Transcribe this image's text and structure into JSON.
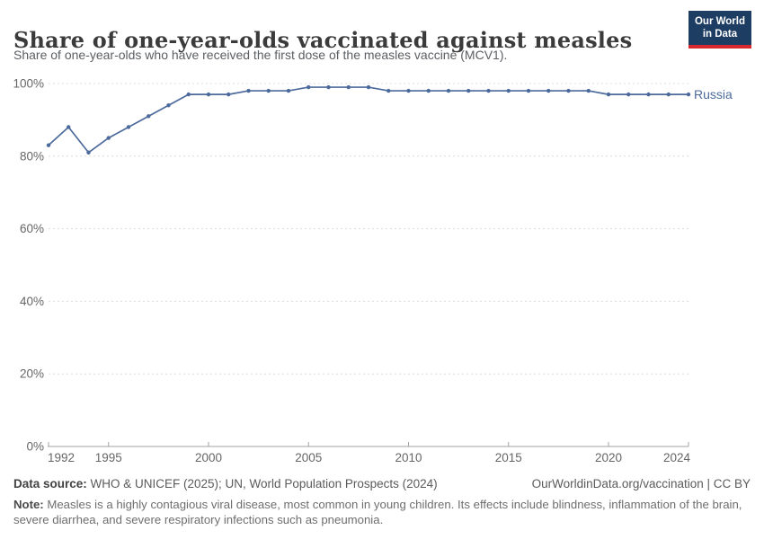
{
  "header": {
    "title": "Share of one-year-olds vaccinated against measles",
    "subtitle": "Share of one-year-olds who have received the first dose of the measles vaccine (MCV1).",
    "logo_line1": "Our World",
    "logo_line2": "in Data"
  },
  "chart_data": {
    "type": "line",
    "title": "Share of one-year-olds vaccinated against measles",
    "entity": "Russia",
    "unit": "%",
    "x": [
      1992,
      1993,
      1994,
      1995,
      1996,
      1997,
      1998,
      1999,
      2000,
      2001,
      2002,
      2003,
      2004,
      2005,
      2006,
      2007,
      2008,
      2009,
      2010,
      2011,
      2012,
      2013,
      2014,
      2015,
      2016,
      2017,
      2018,
      2019,
      2020,
      2021,
      2022,
      2023,
      2024
    ],
    "values": [
      83,
      88,
      81,
      85,
      88,
      91,
      94,
      97,
      97,
      97,
      98,
      98,
      98,
      99,
      99,
      99,
      99,
      98,
      98,
      98,
      98,
      98,
      98,
      98,
      98,
      98,
      98,
      98,
      97,
      97,
      97,
      97,
      97
    ],
    "ylim": [
      0,
      100
    ],
    "yticks": [
      0,
      20,
      40,
      60,
      80,
      100
    ],
    "ytick_labels": [
      "0%",
      "20%",
      "40%",
      "60%",
      "80%",
      "100%"
    ],
    "xticks": [
      1992,
      1995,
      2000,
      2005,
      2010,
      2015,
      2020,
      2024
    ],
    "grid": "dashed horizontal gridlines",
    "legend_position": "right of last point",
    "line_color": "#4c6a9c",
    "gridline_color": "#dcdcdc",
    "axis_color": "#a3a3a3",
    "tick_label_color": "#666666"
  },
  "footer": {
    "source_label": "Data source:",
    "source_text": " WHO & UNICEF (2025); UN, World Population Prospects (2024)",
    "link_text": "OurWorldinData.org/vaccination | CC BY",
    "note_label": "Note:",
    "note_lines": [
      " Measles is a highly contagious viral disease, most common in young children. Its effects include blindness, inflammation of the brain,",
      "severe diarrhea, and severe respiratory infections such as pneumonia."
    ]
  },
  "colors": {
    "logo_bg": "#1d3d63",
    "logo_stripe": "#d7282f",
    "title": "#3b3b3b",
    "subtitle": "#5b5f63",
    "footer_text": "#5b5b5b"
  }
}
